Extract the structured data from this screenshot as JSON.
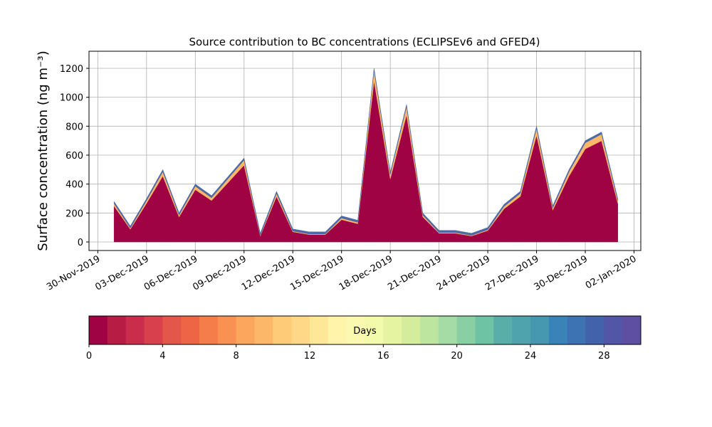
{
  "chart_data": {
    "type": "stacked-area",
    "title": "Source contribution to BC concentrations (ECLIPSEv6 and GFED4)",
    "y_label": "Surface concentration (ng m⁻³)",
    "x": [
      "2019-12-01",
      "2019-12-02",
      "2019-12-03",
      "2019-12-04",
      "2019-12-05",
      "2019-12-06",
      "2019-12-07",
      "2019-12-08",
      "2019-12-09",
      "2019-12-10",
      "2019-12-11",
      "2019-12-12",
      "2019-12-13",
      "2019-12-14",
      "2019-12-15",
      "2019-12-16",
      "2019-12-17",
      "2019-12-18",
      "2019-12-19",
      "2019-12-20",
      "2019-12-21",
      "2019-12-22",
      "2019-12-23",
      "2019-12-24",
      "2019-12-25",
      "2019-12-26",
      "2019-12-27",
      "2019-12-28",
      "2019-12-29",
      "2019-12-30",
      "2019-12-31",
      "2020-01-01"
    ],
    "series": [
      {
        "color": "#a00343",
        "values": [
          248,
          88,
          267,
          455,
          173,
          361,
          286,
          408,
          530,
          41,
          314,
          70,
          51,
          51,
          154,
          126,
          1113,
          436,
          878,
          173,
          60,
          60,
          41,
          79,
          229,
          314,
          737,
          220,
          455,
          643,
          699,
          267
        ]
      },
      {
        "color": "#fdb769",
        "values": [
          17,
          7,
          18,
          30,
          12,
          24,
          19,
          27,
          35,
          4,
          21,
          5,
          4,
          4,
          11,
          9,
          72,
          29,
          57,
          12,
          5,
          5,
          4,
          6,
          16,
          21,
          48,
          15,
          30,
          42,
          46,
          18
        ]
      },
      {
        "color": "#4c6aa8",
        "values": [
          15,
          15,
          15,
          15,
          15,
          15,
          15,
          15,
          15,
          15,
          15,
          15,
          15,
          15,
          15,
          15,
          15,
          15,
          15,
          15,
          15,
          15,
          15,
          15,
          15,
          15,
          15,
          15,
          15,
          15,
          15,
          15
        ]
      }
    ],
    "xlim": [
      "2019-11-29T11:00Z",
      "2020-01-02T10:00Z"
    ],
    "xticks": [
      {
        "value": "2019-11-30",
        "label": "30-Nov-2019"
      },
      {
        "value": "2019-12-03",
        "label": "03-Dec-2019"
      },
      {
        "value": "2019-12-06",
        "label": "06-Dec-2019"
      },
      {
        "value": "2019-12-09",
        "label": "09-Dec-2019"
      },
      {
        "value": "2019-12-12",
        "label": "12-Dec-2019"
      },
      {
        "value": "2019-12-15",
        "label": "15-Dec-2019"
      },
      {
        "value": "2019-12-18",
        "label": "18-Dec-2019"
      },
      {
        "value": "2019-12-21",
        "label": "21-Dec-2019"
      },
      {
        "value": "2019-12-24",
        "label": "24-Dec-2019"
      },
      {
        "value": "2019-12-27",
        "label": "27-Dec-2019"
      },
      {
        "value": "2019-12-30",
        "label": "30-Dec-2019"
      },
      {
        "value": "2020-01-02",
        "label": "02-Jan-2020"
      }
    ],
    "ylim": [
      -59,
      1318
    ],
    "yticks": [
      0,
      200,
      400,
      600,
      800,
      1000,
      1200
    ],
    "grid": true,
    "colorbar": {
      "label": "Days",
      "lim": [
        0,
        30
      ],
      "ticks": [
        0,
        4,
        8,
        12,
        16,
        20,
        24,
        28
      ],
      "colors": [
        "#a00343",
        "#b71c45",
        "#c92d4b",
        "#d8404d",
        "#e3564a",
        "#ed6545",
        "#f57d4a",
        "#f99153",
        "#fca55d",
        "#fdb769",
        "#fecb78",
        "#fed887",
        "#fee797",
        "#fff4aa",
        "#fbf8b0",
        "#f2faac",
        "#e5f4a0",
        "#d3ed9c",
        "#bee5a0",
        "#a5dba4",
        "#88cfa4",
        "#6fc3a5",
        "#5aaea9",
        "#4fa3ad",
        "#4698b1",
        "#3a83b8",
        "#3d73b3",
        "#4262ab",
        "#5356a6",
        "#5e4fa2"
      ]
    }
  }
}
